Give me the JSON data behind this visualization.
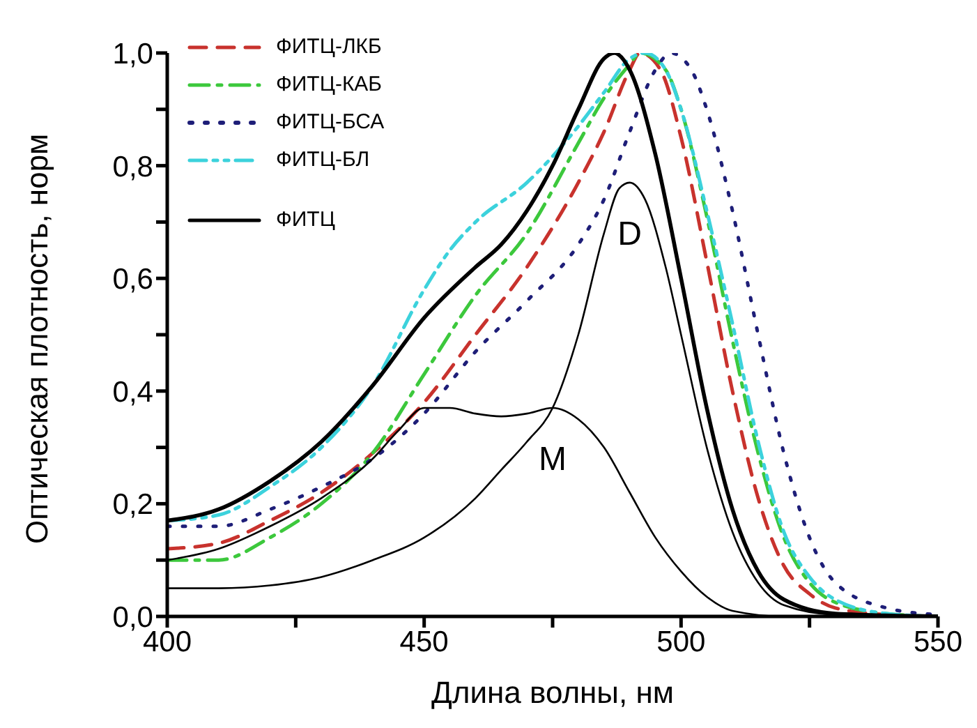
{
  "chart_data": {
    "type": "line",
    "xlabel": "Длина волны, нм",
    "ylabel": "Оптическая плотность, норм",
    "xlim": [
      400,
      550
    ],
    "xticks": [
      400,
      {
        "value": 425,
        "label": null
      },
      450,
      {
        "value": 475,
        "label": null
      },
      500,
      {
        "value": 525,
        "label": null
      },
      550
    ],
    "ylim": [
      0,
      1.0
    ],
    "yticks": [
      {
        "value": 0,
        "label": "0,0"
      },
      {
        "value": 0.1,
        "label": null
      },
      {
        "value": 0.2,
        "label": "0,2"
      },
      {
        "value": 0.3,
        "label": null
      },
      {
        "value": 0.4,
        "label": "0,4"
      },
      {
        "value": 0.5,
        "label": null
      },
      {
        "value": 0.6,
        "label": "0,6"
      },
      {
        "value": 0.7,
        "label": null
      },
      {
        "value": 0.8,
        "label": "0,8"
      },
      {
        "value": 0.9,
        "label": null
      },
      {
        "value": 1.0,
        "label": "1,0"
      }
    ],
    "grid": false,
    "legend": "top left",
    "marker": "none",
    "series": [
      {
        "name": "ФИТЦ-ЛКБ",
        "color": "#c8322d",
        "line_style": "dashed",
        "x": [
          400,
          410,
          420,
          430,
          440,
          450,
          460,
          470,
          480,
          485,
          490,
          492,
          496,
          500,
          505,
          510,
          515,
          520,
          525,
          530,
          540,
          550
        ],
        "values": [
          0.12,
          0.13,
          0.17,
          0.22,
          0.29,
          0.38,
          0.5,
          0.62,
          0.77,
          0.86,
          0.97,
          1.0,
          0.97,
          0.85,
          0.63,
          0.4,
          0.21,
          0.09,
          0.04,
          0.015,
          0.003,
          0
        ]
      },
      {
        "name": "ФИТЦ-КАБ",
        "color": "#3cc83c",
        "line_style": "dashdot",
        "x": [
          400,
          410,
          420,
          430,
          440,
          450,
          460,
          470,
          480,
          485,
          490,
          492,
          497,
          500,
          505,
          510,
          515,
          520,
          525,
          530,
          540,
          550
        ],
        "values": [
          0.1,
          0.1,
          0.14,
          0.2,
          0.29,
          0.43,
          0.57,
          0.68,
          0.84,
          0.92,
          0.98,
          1.0,
          0.97,
          0.9,
          0.71,
          0.49,
          0.29,
          0.14,
          0.06,
          0.025,
          0.005,
          0
        ]
      },
      {
        "name": "ФИТЦ-БСА",
        "color": "#1e1e78",
        "line_style": "dotted",
        "x": [
          400,
          410,
          420,
          430,
          440,
          450,
          460,
          470,
          480,
          485,
          490,
          495,
          498,
          502,
          505,
          510,
          515,
          520,
          525,
          530,
          540,
          550
        ],
        "values": [
          0.16,
          0.16,
          0.19,
          0.23,
          0.28,
          0.36,
          0.47,
          0.56,
          0.66,
          0.74,
          0.86,
          0.97,
          1.0,
          0.97,
          0.9,
          0.72,
          0.5,
          0.29,
          0.14,
          0.06,
          0.015,
          0.003
        ]
      },
      {
        "name": "ФИТЦ-БЛ",
        "color": "#3cd2dc",
        "line_style": "dashdotdot",
        "x": [
          400,
          410,
          420,
          430,
          440,
          450,
          455,
          460,
          470,
          480,
          485,
          490,
          493,
          497,
          500,
          505,
          510,
          515,
          520,
          525,
          530,
          540,
          550
        ],
        "values": [
          0.17,
          0.18,
          0.23,
          0.3,
          0.41,
          0.58,
          0.65,
          0.7,
          0.77,
          0.87,
          0.93,
          0.99,
          1.0,
          0.97,
          0.9,
          0.72,
          0.52,
          0.31,
          0.15,
          0.07,
          0.03,
          0.005,
          0
        ]
      },
      {
        "name": "ФИТЦ",
        "color": "#000000",
        "line_style": "solid",
        "x": [
          400,
          410,
          420,
          430,
          440,
          450,
          460,
          465,
          470,
          475,
          480,
          485,
          487,
          490,
          495,
          500,
          505,
          510,
          515,
          520,
          530,
          550
        ],
        "values": [
          0.17,
          0.19,
          0.24,
          0.31,
          0.41,
          0.53,
          0.62,
          0.66,
          0.72,
          0.8,
          0.9,
          0.99,
          1.0,
          0.97,
          0.82,
          0.6,
          0.37,
          0.19,
          0.08,
          0.03,
          0.005,
          0
        ]
      },
      {
        "color": "#000000",
        "line_style": "solid",
        "x": [
          400,
          410,
          420,
          430,
          440,
          445,
          450,
          455,
          460,
          465,
          470,
          475,
          480,
          485,
          490,
          495,
          500,
          505,
          510,
          520,
          550
        ],
        "values": [
          0.1,
          0.12,
          0.16,
          0.21,
          0.28,
          0.33,
          0.37,
          0.37,
          0.36,
          0.355,
          0.36,
          0.37,
          0.35,
          0.3,
          0.22,
          0.14,
          0.08,
          0.035,
          0.01,
          0,
          0
        ]
      },
      {
        "color": "#000000",
        "line_style": "solid",
        "x": [
          400,
          410,
          420,
          430,
          440,
          450,
          460,
          465,
          470,
          475,
          480,
          485,
          488,
          490,
          493,
          497,
          500,
          505,
          510,
          515,
          520,
          530,
          550
        ],
        "values": [
          0.05,
          0.05,
          0.055,
          0.07,
          0.1,
          0.14,
          0.21,
          0.26,
          0.31,
          0.37,
          0.5,
          0.68,
          0.76,
          0.77,
          0.74,
          0.62,
          0.5,
          0.3,
          0.15,
          0.06,
          0.02,
          0.003,
          0
        ]
      }
    ],
    "annotations": [
      {
        "text": "D",
        "x": 490,
        "y": 0.77
      },
      {
        "text": "M",
        "x": 475,
        "y": 0.37
      }
    ]
  }
}
